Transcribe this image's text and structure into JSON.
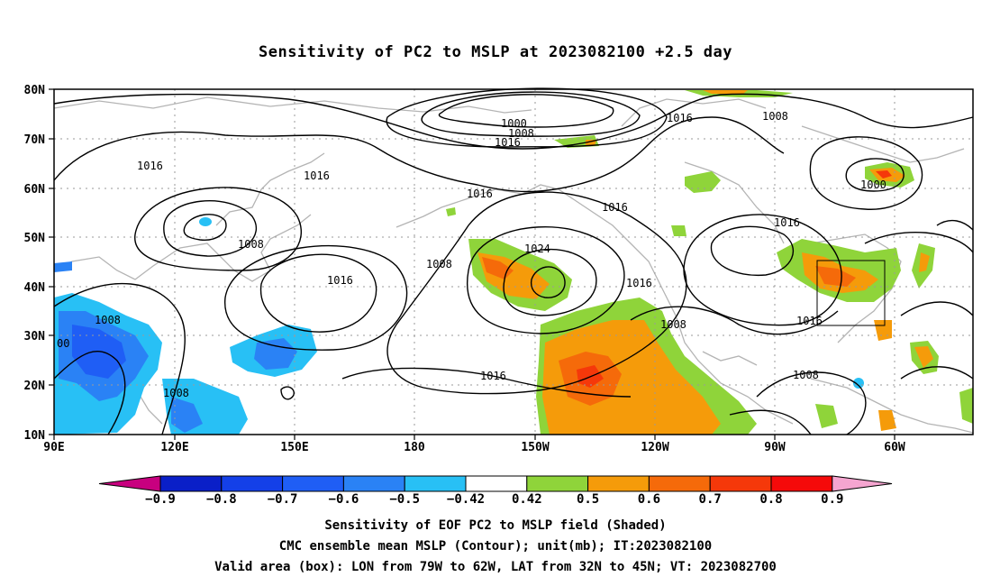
{
  "title": "Sensitivity of PC2 to MSLP at 2023082100 +2.5 day",
  "map": {
    "lat_ticks": [
      "80N",
      "70N",
      "60N",
      "50N",
      "40N",
      "30N",
      "20N",
      "10N"
    ],
    "lon_ticks": [
      "90E",
      "120E",
      "150E",
      "180",
      "150W",
      "120W",
      "90W",
      "60W"
    ],
    "contour_labels": [
      "1000",
      "1008",
      "1016",
      "1016",
      "1016",
      "1016",
      "1016",
      "1008",
      "1008",
      "1016",
      "1024",
      "1008",
      "1016",
      "1016",
      "1008",
      "1016",
      "1016",
      "1000",
      "1008",
      "1016",
      "1008",
      "1008",
      "00"
    ],
    "valid_box": {
      "lon_min": "79W",
      "lon_max": "62W",
      "lat_min": "32N",
      "lat_max": "45N"
    }
  },
  "colorbar": {
    "labels": [
      "-0.9",
      "-0.8",
      "-0.7",
      "-0.6",
      "-0.5",
      "-0.42",
      "0.42",
      "0.5",
      "0.6",
      "0.7",
      "0.8",
      "0.9"
    ],
    "colors": [
      "#c8007f",
      "#0a1fc8",
      "#1440e8",
      "#1f5ef5",
      "#2a82f5",
      "#28c0f5",
      "#ffffff",
      "#8fd43a",
      "#f59b0a",
      "#f56a0a",
      "#f5380a",
      "#f50a0a",
      "#f5a5d0"
    ]
  },
  "captions": {
    "line1": "Sensitivity of EOF PC2 to MSLP field (Shaded)",
    "line2": "CMC ensemble mean MSLP (Contour); unit(mb); IT:2023082100",
    "line3": "Valid area (box): LON from 79W to 62W, LAT from 32N to 45N; VT: 2023082700"
  }
}
